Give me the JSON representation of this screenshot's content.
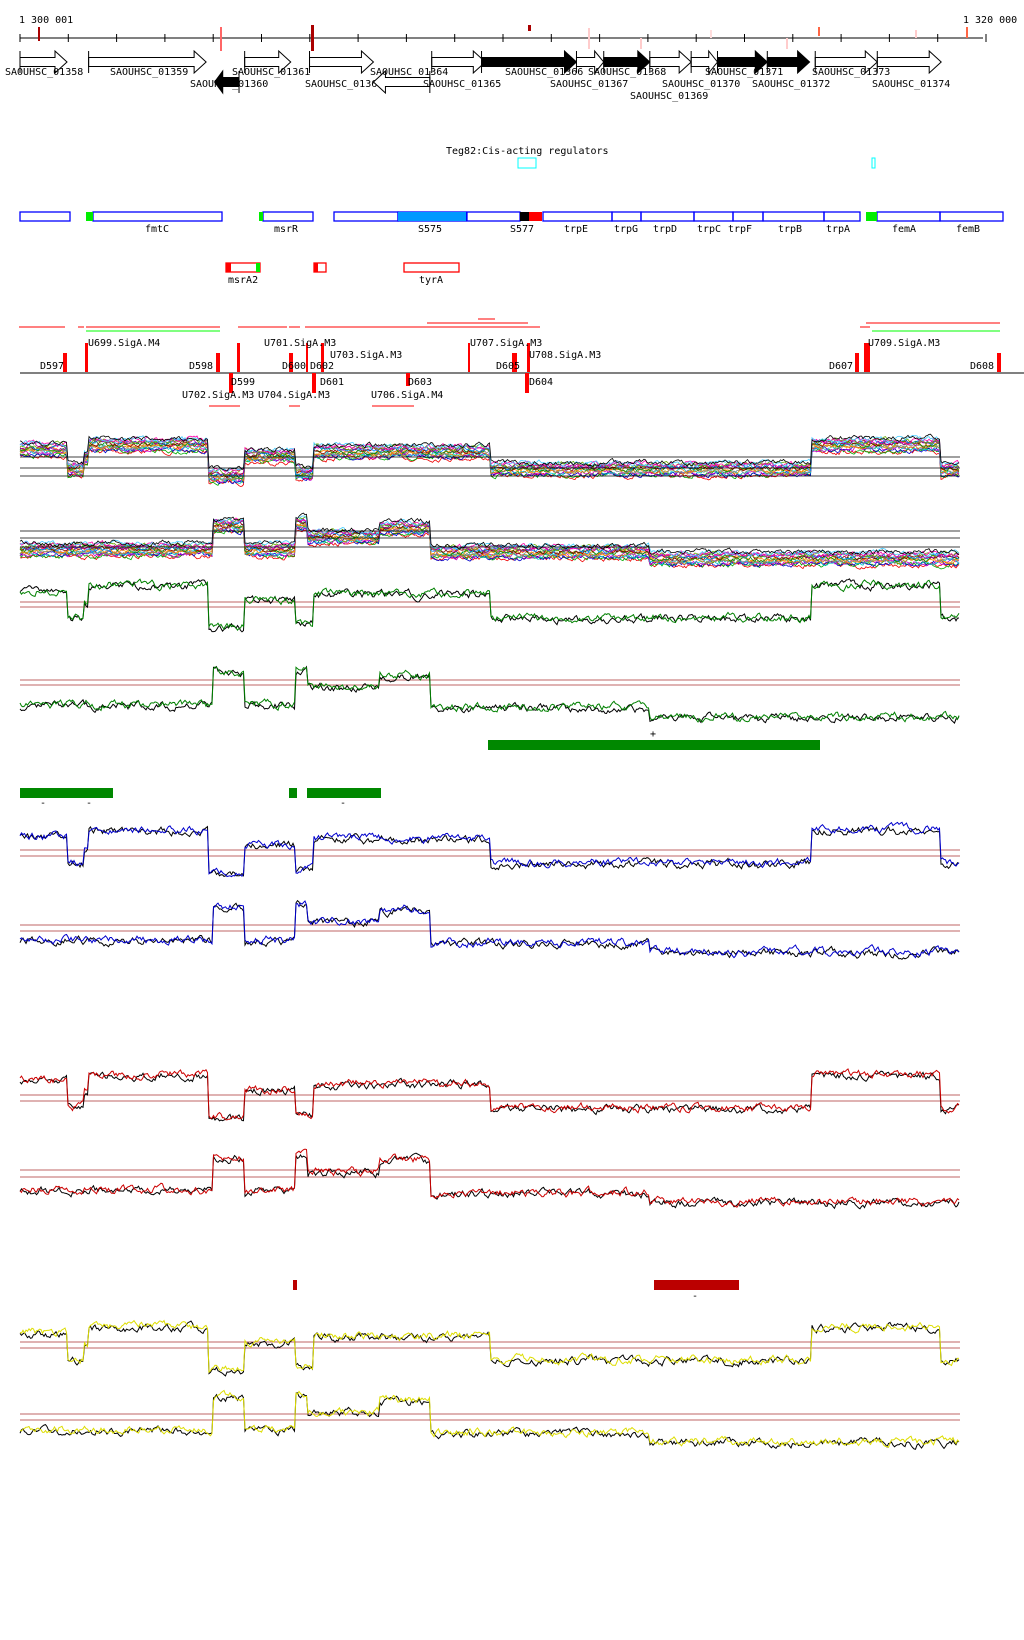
{
  "ruler": {
    "start_label": "1 300 001",
    "end_label": "1 320 000"
  },
  "genes": [
    {
      "name": "SAOUHSC_01358",
      "strand": "+",
      "fill": "white"
    },
    {
      "name": "SAOUHSC_01359",
      "strand": "+",
      "fill": "white"
    },
    {
      "name": "SAOUHSC_01360",
      "strand": "-",
      "fill": "black"
    },
    {
      "name": "SAOUHSC_01361",
      "strand": "+",
      "fill": "white"
    },
    {
      "name": "SAOUHSC_01363",
      "strand": "+",
      "fill": "white"
    },
    {
      "name": "SAOUHSC_01364",
      "strand": "-",
      "fill": "white"
    },
    {
      "name": "SAOUHSC_01365",
      "strand": "+",
      "fill": "white"
    },
    {
      "name": "SAOUHSC_01366",
      "strand": "+",
      "fill": "black"
    },
    {
      "name": "SAOUHSC_01367",
      "strand": "+",
      "fill": "white"
    },
    {
      "name": "SAOUHSC_01368",
      "strand": "+",
      "fill": "black"
    },
    {
      "name": "SAOUHSC_01369",
      "strand": "+",
      "fill": "white"
    },
    {
      "name": "SAOUHSC_01370",
      "strand": "+",
      "fill": "white"
    },
    {
      "name": "SAOUHSC_01371",
      "strand": "+",
      "fill": "black"
    },
    {
      "name": "SAOUHSC_01372",
      "strand": "+",
      "fill": "black"
    },
    {
      "name": "SAOUHSC_01373",
      "strand": "+",
      "fill": "white"
    },
    {
      "name": "SAOUHSC_01374",
      "strand": "+",
      "fill": "white"
    }
  ],
  "regulator_track": {
    "title": "Teg82:Cis-acting regulators"
  },
  "features_top": [
    "fmtC",
    "msrR",
    "S575",
    "S577",
    "trpE",
    "trpG",
    "trpD",
    "trpC",
    "trpF",
    "trpB",
    "trpA",
    "femA",
    "femB"
  ],
  "features_bottom": [
    "msrA2",
    "tyrA"
  ],
  "segments": [
    "D597",
    "U699.SigA.M4",
    "D598",
    "D599",
    "U702.SigA.M3",
    "U704.SigA.M3",
    "U701.SigA.M3",
    "D600",
    "D602",
    "D601",
    "U703.SigA.M3",
    "D603",
    "U706.SigA.M4",
    "U707.SigA.M3",
    "D605",
    "U708.SigA.M3",
    "D604",
    "D607",
    "U709.SigA.M3",
    "D608"
  ],
  "strand_marks": {
    "plus": "+",
    "minus": "-"
  },
  "colors": {
    "forward": "#008000",
    "blue": "#0000cc",
    "red": "#cc0000",
    "yellow": "#dddd00",
    "feature": "#0000ff",
    "highlight": "#ff0000"
  }
}
